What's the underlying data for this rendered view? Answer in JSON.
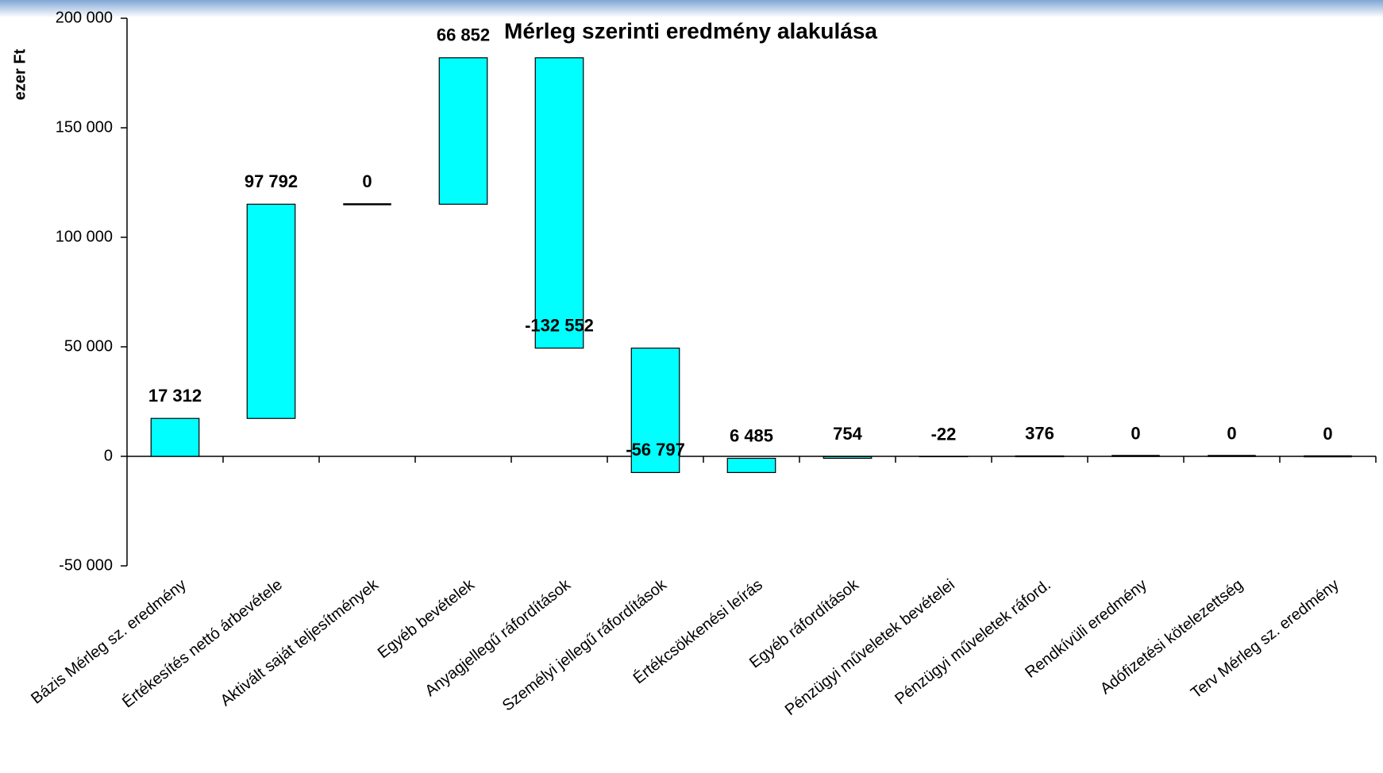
{
  "chart_data": {
    "type": "waterfall",
    "title": "Mérleg szerinti eredmény alakulása",
    "y_label": "ezer Ft",
    "categories": [
      "Bázis Mérleg sz. eredmény",
      "Értékesítés nettó árbevétele",
      "Aktivált saját teljesítmények",
      "Egyéb bevételek",
      "Anyagjellegű ráfordítások",
      "Személyi jellegű ráfordítások",
      "Értékcsökkenési leírás",
      "Egyéb ráfordítások",
      "Pénzügyi műveletek bevételei",
      "Pénzügyi műveletek ráford.",
      "Rendkívüli eredmény",
      "Adófizetési kötelezettség",
      "Terv Mérleg sz. eredmény"
    ],
    "values": [
      17312,
      97792,
      0,
      66852,
      -132552,
      -56797,
      6485,
      754,
      -22,
      376,
      0,
      0,
      0
    ],
    "value_labels": [
      "17 312",
      "97 792",
      "0",
      "66 852",
      "-132 552",
      "-56 797",
      "6 485",
      "754",
      "-22",
      "376",
      "0",
      "0",
      "0"
    ],
    "color": "#00ffff",
    "ylim": [
      -50000,
      200000
    ],
    "yticks": [
      {
        "value": -50000,
        "label": "-50 000"
      },
      0,
      {
        "value": 50000,
        "label": "50 000"
      },
      {
        "value": 100000,
        "label": "100 000"
      },
      {
        "value": 150000,
        "label": "150 000"
      },
      {
        "value": 200000,
        "label": "200 000"
      }
    ]
  }
}
